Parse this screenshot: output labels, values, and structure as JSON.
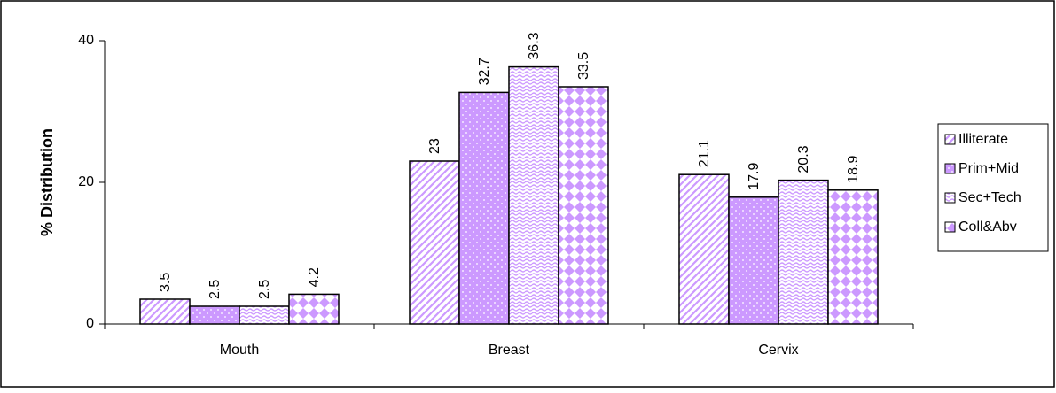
{
  "chart_data": {
    "type": "bar",
    "y_label": "% Distribution",
    "categories": [
      "Mouth",
      "Breast",
      "Cervix"
    ],
    "series": [
      {
        "name": "Illiterate",
        "color": "#cc99ff",
        "pattern": "stripes",
        "values": [
          3.5,
          23,
          21.1
        ]
      },
      {
        "name": "Prim+Mid",
        "color": "#cc99ff",
        "pattern": "dots",
        "values": [
          2.5,
          32.7,
          17.9
        ]
      },
      {
        "name": "Sec+Tech",
        "color": "#cc99ff",
        "pattern": "waves",
        "values": [
          2.5,
          36.3,
          20.3
        ]
      },
      {
        "name": "Coll&Abv",
        "color": "#cc99ff",
        "pattern": "checks",
        "values": [
          4.2,
          33.5,
          18.9
        ]
      }
    ],
    "ylim": [
      0,
      40
    ],
    "yticks": [
      0,
      20,
      40
    ],
    "grid": false,
    "legend": "right"
  }
}
